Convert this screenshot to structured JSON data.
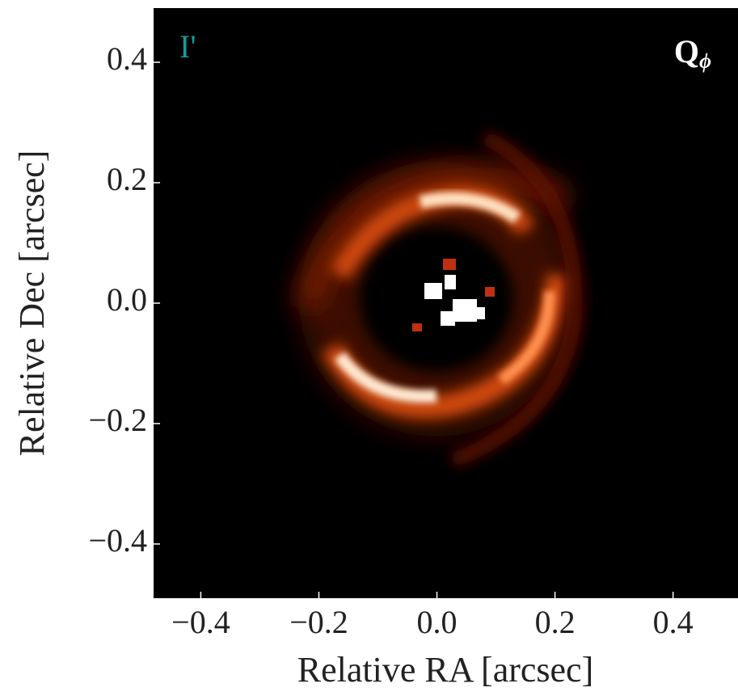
{
  "chart_data": {
    "type": "image",
    "xlabel": "Relative RA [arcsec]",
    "ylabel": "Relative Dec [arcsec]",
    "xlim": [
      -0.48,
      0.51
    ],
    "ylim": [
      -0.49,
      0.49
    ],
    "xticks": [
      {
        "value": -0.4,
        "label": "−0.4"
      },
      {
        "value": -0.2,
        "label": "−0.2"
      },
      {
        "value": 0,
        "label": "0.0"
      },
      0.2,
      0.4
    ],
    "yticks": [
      {
        "value": -0.4,
        "label": "−0.4"
      },
      {
        "value": -0.2,
        "label": "−0.2"
      },
      {
        "value": 0,
        "label": "0.0"
      },
      0.2,
      0.4
    ],
    "annotations": [
      {
        "text": "I'",
        "color": "#1a9a9a"
      },
      {
        "text": "Q",
        "subscript": "ϕ",
        "color": "#ffffff"
      }
    ]
  }
}
